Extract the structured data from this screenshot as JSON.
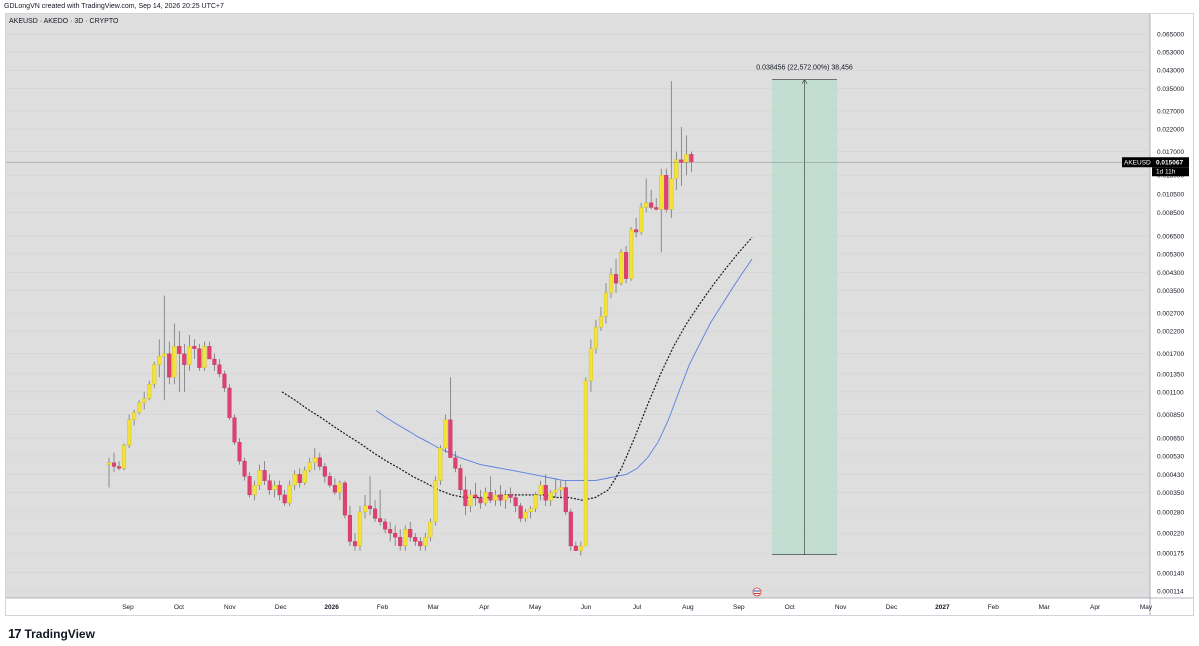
{
  "header": {
    "credit": "GDLongVN created with TradingView.com, Sep 14, 2026 20:25 UTC+7"
  },
  "footer": {
    "logo_text": "TradingView",
    "logo_mark": "17"
  },
  "chart_data": {
    "type": "candlestick",
    "title": "AKEUSD · AKEDO · 3D · CRYPTO",
    "scale": "log",
    "ylim": [
      0.000105,
      0.0745
    ],
    "y_ticks": [
      "0.065000",
      "0.053000",
      "0.043000",
      "0.035000",
      "0.027000",
      "0.022000",
      "0.017000",
      "0.013000",
      "0.010500",
      "0.008500",
      "0.006500",
      "0.005300",
      "0.004300",
      "0.003500",
      "0.002700",
      "0.002200",
      "0.001700",
      "0.001350",
      "0.001100",
      "0.000850",
      "0.000650",
      "0.000530",
      "0.000430",
      "0.000350",
      "0.000280",
      "0.000220",
      "0.000175",
      "0.000140",
      "0.000114"
    ],
    "x_ticks": [
      "Sep",
      "Oct",
      "Nov",
      "Dec",
      "2026",
      "Feb",
      "Mar",
      "Apr",
      "May",
      "Jun",
      "Jul",
      "Aug",
      "Sep",
      "Oct",
      "Nov",
      "Dec",
      "2027",
      "Feb",
      "Mar",
      "Apr",
      "May"
    ],
    "price_label": {
      "symbol": "AKEUSD",
      "price": "0.015067",
      "countdown": "1d 11h",
      "value": 0.015067
    },
    "measure_annotation": {
      "text": "0.038456 (22,572.00%) 38,456",
      "from": 0.000172,
      "to": 0.0386
    },
    "colors": {
      "up": "#f2e23a",
      "down": "#e0406f",
      "ma_fast": "#1a1a1a",
      "ma_slow": "#5b7fe0",
      "measure_fill": "#b8dccc"
    },
    "candles": [
      [
        0.00048,
        0.00052,
        0.00037,
        0.00049
      ],
      [
        0.00049,
        0.00055,
        0.00044,
        0.00047
      ],
      [
        0.00047,
        0.0005,
        0.00045,
        0.00046
      ],
      [
        0.00046,
        0.00061,
        0.00045,
        0.0006
      ],
      [
        0.0006,
        0.00085,
        0.00058,
        0.0008
      ],
      [
        0.0008,
        0.0009,
        0.00075,
        0.00087
      ],
      [
        0.00087,
        0.001,
        0.00085,
        0.00097
      ],
      [
        0.00097,
        0.0011,
        0.0009,
        0.00102
      ],
      [
        0.00102,
        0.00125,
        0.001,
        0.0012
      ],
      [
        0.0012,
        0.00155,
        0.00115,
        0.0015
      ],
      [
        0.0015,
        0.002,
        0.0013,
        0.00165
      ],
      [
        0.00165,
        0.0033,
        0.001,
        0.0017
      ],
      [
        0.0017,
        0.00195,
        0.0012,
        0.0013
      ],
      [
        0.0013,
        0.0024,
        0.0012,
        0.00185
      ],
      [
        0.00185,
        0.0022,
        0.0011,
        0.0017
      ],
      [
        0.0017,
        0.0019,
        0.0011,
        0.0015
      ],
      [
        0.0015,
        0.0021,
        0.0014,
        0.00185
      ],
      [
        0.00185,
        0.002,
        0.0016,
        0.0018
      ],
      [
        0.0018,
        0.0019,
        0.0014,
        0.00145
      ],
      [
        0.00145,
        0.00195,
        0.0014,
        0.00185
      ],
      [
        0.00185,
        0.00195,
        0.0016,
        0.0016
      ],
      [
        0.0016,
        0.0017,
        0.0014,
        0.0015
      ],
      [
        0.0015,
        0.0016,
        0.0013,
        0.00135
      ],
      [
        0.00135,
        0.0014,
        0.0011,
        0.00115
      ],
      [
        0.00115,
        0.0012,
        0.0008,
        0.00082
      ],
      [
        0.00082,
        0.00085,
        0.0006,
        0.00062
      ],
      [
        0.00062,
        0.00065,
        0.00048,
        0.0005
      ],
      [
        0.0005,
        0.00052,
        0.0004,
        0.00042
      ],
      [
        0.00042,
        0.00044,
        0.00033,
        0.00034
      ],
      [
        0.00034,
        0.0004,
        0.00032,
        0.00038
      ],
      [
        0.00038,
        0.00048,
        0.00036,
        0.00045
      ],
      [
        0.00045,
        0.0005,
        0.00038,
        0.0004
      ],
      [
        0.0004,
        0.00043,
        0.00034,
        0.00036
      ],
      [
        0.00036,
        0.0004,
        0.00033,
        0.00038
      ],
      [
        0.00038,
        0.0004,
        0.00032,
        0.00034
      ],
      [
        0.00034,
        0.00036,
        0.0003,
        0.00031
      ],
      [
        0.00031,
        0.0004,
        0.0003,
        0.00038
      ],
      [
        0.00038,
        0.00045,
        0.00036,
        0.00043
      ],
      [
        0.00043,
        0.00046,
        0.00037,
        0.00039
      ],
      [
        0.00039,
        0.00047,
        0.00038,
        0.00045
      ],
      [
        0.00045,
        0.00052,
        0.00044,
        0.00049
      ],
      [
        0.00049,
        0.00058,
        0.00045,
        0.00052
      ],
      [
        0.00052,
        0.00055,
        0.00045,
        0.00047
      ],
      [
        0.00047,
        0.00049,
        0.00039,
        0.00042
      ],
      [
        0.00042,
        0.00044,
        0.00037,
        0.00038
      ],
      [
        0.00038,
        0.00041,
        0.00034,
        0.00035
      ],
      [
        0.00035,
        0.0004,
        0.00032,
        0.00039
      ],
      [
        0.00039,
        0.0004,
        0.00026,
        0.00027
      ],
      [
        0.00027,
        0.0003,
        0.00019,
        0.0002
      ],
      [
        0.0002,
        0.00022,
        0.00018,
        0.00019
      ],
      [
        0.00019,
        0.0003,
        0.00018,
        0.00028
      ],
      [
        0.00028,
        0.00034,
        0.00026,
        0.0003
      ],
      [
        0.0003,
        0.00042,
        0.00027,
        0.00029
      ],
      [
        0.00029,
        0.00032,
        0.00025,
        0.00026
      ],
      [
        0.00026,
        0.00036,
        0.00024,
        0.00025
      ],
      [
        0.00025,
        0.00026,
        0.00022,
        0.00023
      ],
      [
        0.00023,
        0.00025,
        0.0002,
        0.00022
      ],
      [
        0.00022,
        0.00024,
        0.00019,
        0.00021
      ],
      [
        0.00021,
        0.00023,
        0.00018,
        0.00019
      ],
      [
        0.00019,
        0.00024,
        0.00018,
        0.00023
      ],
      [
        0.00023,
        0.00025,
        0.0002,
        0.00021
      ],
      [
        0.00021,
        0.00022,
        0.00019,
        0.0002
      ],
      [
        0.0002,
        0.00021,
        0.00018,
        0.00019
      ],
      [
        0.00019,
        0.00022,
        0.00018,
        0.00021
      ],
      [
        0.00021,
        0.00026,
        0.0002,
        0.00025
      ],
      [
        0.00025,
        0.00042,
        0.00024,
        0.0004
      ],
      [
        0.0004,
        0.0006,
        0.00038,
        0.00058
      ],
      [
        0.00058,
        0.00085,
        0.00055,
        0.0008
      ],
      [
        0.0008,
        0.0013,
        0.0006,
        0.00052
      ],
      [
        0.00052,
        0.00056,
        0.00044,
        0.00046
      ],
      [
        0.00046,
        0.00048,
        0.00034,
        0.00036
      ],
      [
        0.00036,
        0.00042,
        0.00027,
        0.0003
      ],
      [
        0.0003,
        0.00036,
        0.00028,
        0.00034
      ],
      [
        0.00034,
        0.00039,
        0.0003,
        0.00033
      ],
      [
        0.00033,
        0.00036,
        0.00029,
        0.00031
      ],
      [
        0.00031,
        0.00037,
        0.0003,
        0.00035
      ],
      [
        0.00035,
        0.00042,
        0.00031,
        0.00032
      ],
      [
        0.00032,
        0.00036,
        0.0003,
        0.00034
      ],
      [
        0.00034,
        0.00038,
        0.0003,
        0.00032
      ],
      [
        0.00032,
        0.00036,
        0.00029,
        0.00034
      ],
      [
        0.00034,
        0.00037,
        0.00031,
        0.00033
      ],
      [
        0.00033,
        0.00034,
        0.00028,
        0.0003
      ],
      [
        0.0003,
        0.00031,
        0.00025,
        0.00026
      ],
      [
        0.00026,
        0.00029,
        0.00025,
        0.00028
      ],
      [
        0.00028,
        0.0003,
        0.00026,
        0.00029
      ],
      [
        0.00029,
        0.00035,
        0.00028,
        0.00034
      ],
      [
        0.00034,
        0.0004,
        0.00032,
        0.00038
      ],
      [
        0.00038,
        0.00043,
        0.0003,
        0.00032
      ],
      [
        0.00032,
        0.00036,
        0.0003,
        0.00035
      ],
      [
        0.00035,
        0.00041,
        0.00033,
        0.00036
      ],
      [
        0.00036,
        0.0004,
        0.00033,
        0.00037
      ],
      [
        0.00037,
        0.0004,
        0.00027,
        0.00028
      ],
      [
        0.00028,
        0.00029,
        0.00018,
        0.00019
      ],
      [
        0.00019,
        0.0002,
        0.00018,
        0.00018
      ],
      [
        0.00018,
        0.0002,
        0.00017,
        0.00019
      ],
      [
        0.00019,
        0.0013,
        0.00019,
        0.00125
      ],
      [
        0.00125,
        0.002,
        0.0011,
        0.0018
      ],
      [
        0.0018,
        0.0025,
        0.0017,
        0.0023
      ],
      [
        0.0023,
        0.0029,
        0.0022,
        0.0026
      ],
      [
        0.0026,
        0.0038,
        0.0024,
        0.0034
      ],
      [
        0.0034,
        0.0045,
        0.0032,
        0.0042
      ],
      [
        0.0042,
        0.005,
        0.0034,
        0.0038
      ],
      [
        0.0038,
        0.0056,
        0.0037,
        0.0054
      ],
      [
        0.0054,
        0.0058,
        0.0038,
        0.004
      ],
      [
        0.004,
        0.0072,
        0.0039,
        0.007
      ],
      [
        0.007,
        0.008,
        0.0064,
        0.0068
      ],
      [
        0.0068,
        0.0095,
        0.0066,
        0.009
      ],
      [
        0.009,
        0.0125,
        0.0085,
        0.0095
      ],
      [
        0.0095,
        0.011,
        0.0088,
        0.009
      ],
      [
        0.009,
        0.01,
        0.0087,
        0.0088
      ],
      [
        0.0088,
        0.014,
        0.0054,
        0.013
      ],
      [
        0.013,
        0.014,
        0.0085,
        0.0088
      ],
      [
        0.0088,
        0.038,
        0.008,
        0.0125
      ],
      [
        0.0125,
        0.017,
        0.011,
        0.0155
      ],
      [
        0.0155,
        0.0225,
        0.0115,
        0.015
      ],
      [
        0.015,
        0.0205,
        0.013,
        0.0165
      ],
      [
        0.0165,
        0.017,
        0.0135,
        0.01507
      ]
    ],
    "ma_slow": [
      [
        0.00089,
        0.00082,
        0.00076,
        0.00071,
        0.00066,
        0.00062,
        0.00058,
        0.00055,
        0.00052,
        0.0005,
        0.00048,
        0.00047,
        0.00046,
        0.00045,
        0.00044,
        0.00043,
        0.00042,
        0.00041,
        0.0004,
        0.0004,
        0.0004,
        0.0004,
        0.00041,
        0.00042,
        0.00043,
        0.00046,
        0.00052,
        0.00062,
        0.0008,
        0.0011,
        0.0015,
        0.0019,
        0.0024,
        0.0029,
        0.0035,
        0.0042,
        0.005
      ]
    ],
    "ma_fast": [
      [
        0.0011,
        0.001,
        0.0009,
        0.00082,
        0.00074,
        0.00067,
        0.00061,
        0.00055,
        0.0005,
        0.00046,
        0.00042,
        0.00039,
        0.00036,
        0.00034,
        0.00033,
        0.00033,
        0.00033,
        0.00034,
        0.00034,
        0.00034,
        0.00034,
        0.00033,
        0.00033,
        0.00032,
        0.00033,
        0.00036,
        0.00046,
        0.00065,
        0.00095,
        0.00135,
        0.00185,
        0.0024,
        0.003,
        0.0037,
        0.0045,
        0.0054,
        0.0064
      ]
    ]
  }
}
